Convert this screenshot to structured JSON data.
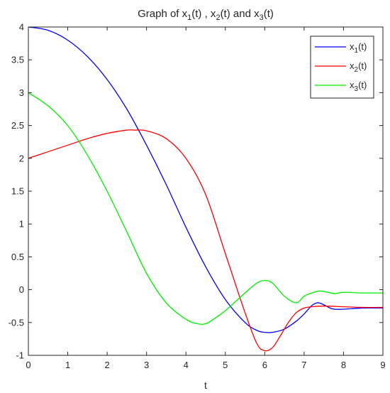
{
  "chart_data": {
    "type": "line",
    "title": {
      "parts": [
        {
          "text": "Graph of x"
        },
        {
          "text": "1",
          "sub": true
        },
        {
          "text": "(t) , x"
        },
        {
          "text": "2",
          "sub": true
        },
        {
          "text": "(t) and x"
        },
        {
          "text": "3",
          "sub": true
        },
        {
          "text": "(t)"
        }
      ]
    },
    "xlabel": "t",
    "ylabel": "",
    "xlim": [
      0,
      9
    ],
    "ylim": [
      -1,
      4
    ],
    "xticks": [
      "0",
      "1",
      "2",
      "3",
      "4",
      "5",
      "6",
      "7",
      "8",
      "9"
    ],
    "yticks": [
      "-1",
      "-0.5",
      "0",
      "0.5",
      "1",
      "1.5",
      "2",
      "2.5",
      "3",
      "3.5",
      "4"
    ],
    "grid": false,
    "legend_position": "top-right",
    "series": [
      {
        "name": "x1(t)",
        "legend": {
          "base": "x",
          "sub": "1",
          "suffix": "(t)"
        },
        "color": "#0000ff",
        "x": [
          0,
          0.5,
          1,
          1.5,
          2,
          2.5,
          3,
          3.5,
          4,
          4.5,
          5,
          5.5,
          5.8,
          6,
          6.2,
          6.5,
          6.8,
          7,
          7.2,
          7.35,
          7.5,
          7.7,
          7.9,
          8.2,
          8.5,
          9
        ],
        "y": [
          4.0,
          3.95,
          3.8,
          3.55,
          3.2,
          2.75,
          2.2,
          1.6,
          0.95,
          0.35,
          -0.15,
          -0.5,
          -0.62,
          -0.65,
          -0.65,
          -0.6,
          -0.48,
          -0.37,
          -0.24,
          -0.2,
          -0.23,
          -0.29,
          -0.3,
          -0.29,
          -0.28,
          -0.28
        ]
      },
      {
        "name": "x2(t)",
        "legend": {
          "base": "x",
          "sub": "2",
          "suffix": "(t)"
        },
        "color": "#ff0000",
        "x": [
          0,
          0.5,
          1,
          1.5,
          2,
          2.5,
          2.7,
          3,
          3.5,
          4,
          4.5,
          5,
          5.5,
          5.8,
          6,
          6.2,
          6.4,
          6.6,
          6.8,
          7,
          7.2,
          7.5,
          8,
          8.5,
          9
        ],
        "y": [
          2.0,
          2.1,
          2.2,
          2.3,
          2.38,
          2.43,
          2.43,
          2.42,
          2.3,
          2.0,
          1.45,
          0.55,
          -0.35,
          -0.82,
          -0.93,
          -0.88,
          -0.7,
          -0.5,
          -0.35,
          -0.28,
          -0.26,
          -0.25,
          -0.26,
          -0.27,
          -0.27
        ]
      },
      {
        "name": "x3(t)",
        "legend": {
          "base": "x",
          "sub": "3",
          "suffix": "(t)"
        },
        "color": "#00ee00",
        "x": [
          0,
          0.5,
          1,
          1.5,
          2,
          2.5,
          3,
          3.5,
          4,
          4.3,
          4.5,
          4.7,
          5,
          5.5,
          5.8,
          6,
          6.2,
          6.5,
          6.8,
          7,
          7.2,
          7.4,
          7.6,
          7.8,
          8,
          8.5,
          9
        ],
        "y": [
          3.0,
          2.8,
          2.5,
          2.05,
          1.5,
          0.88,
          0.25,
          -0.2,
          -0.45,
          -0.52,
          -0.52,
          -0.45,
          -0.32,
          -0.05,
          0.1,
          0.14,
          0.1,
          -0.1,
          -0.2,
          -0.1,
          -0.05,
          -0.02,
          -0.04,
          -0.06,
          -0.04,
          -0.05,
          -0.05
        ]
      }
    ]
  }
}
